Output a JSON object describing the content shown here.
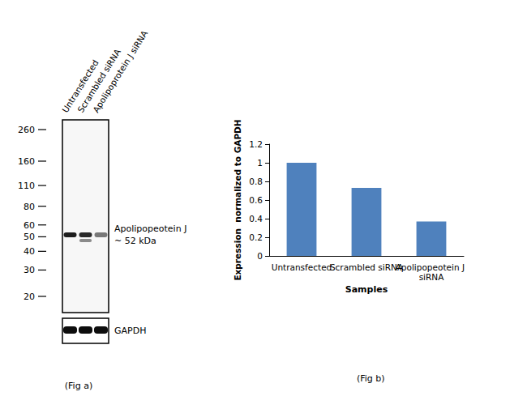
{
  "chart_data": {
    "type": "bar",
    "categories": [
      "Untransfected",
      "Scrambled siRNA",
      "Apolipopeotein J siRNA"
    ],
    "values": [
      1.0,
      0.73,
      0.37
    ],
    "color": "#4f81bd",
    "xlabel": "Samples",
    "ylabel": "Expression  normalized to GAPDH",
    "ylim": [
      0,
      1.2
    ],
    "yticks": [
      0,
      0.2,
      0.4,
      0.6,
      0.8,
      1,
      1.2
    ],
    "grid": false,
    "caption": "(Fig b)"
  },
  "blot": {
    "lanes": [
      "Untransfected",
      "Scrambled siRNA",
      "Apolipoprotein J siRNA"
    ],
    "markers": [
      260,
      160,
      110,
      80,
      60,
      50,
      40,
      30,
      20
    ],
    "band_label": [
      "Apolipopeotein J",
      "~ 52 kDa"
    ],
    "loading_control": "GAPDH",
    "caption": "(Fig a)"
  }
}
